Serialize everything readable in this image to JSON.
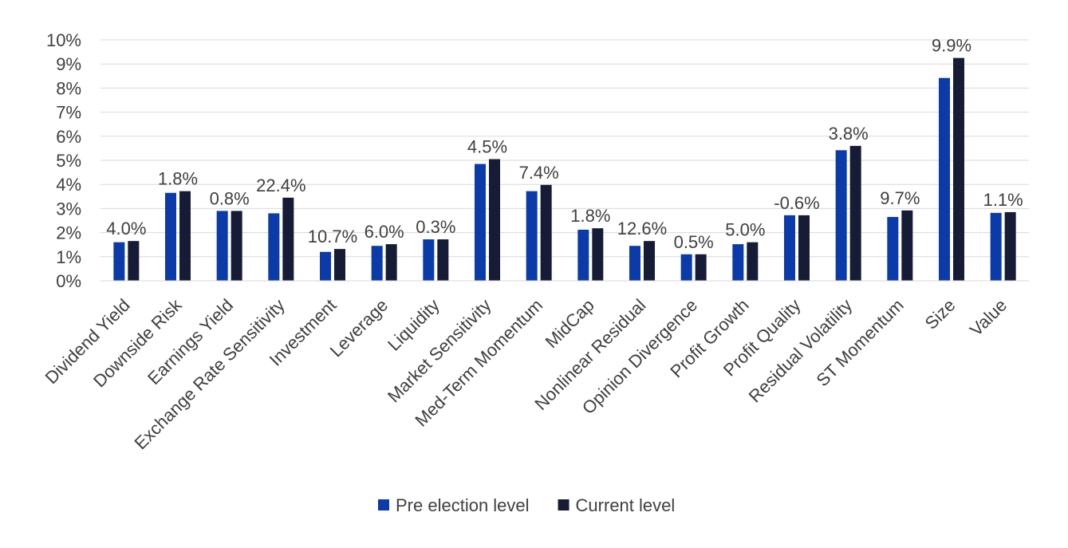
{
  "chart_data": {
    "type": "bar",
    "title": "",
    "xlabel": "",
    "ylabel": "",
    "ylim": [
      0,
      10
    ],
    "y_ticks": [
      "0%",
      "1%",
      "2%",
      "3%",
      "4%",
      "5%",
      "6%",
      "7%",
      "8%",
      "9%",
      "10%"
    ],
    "grid": true,
    "legend_position": "bottom",
    "categories": [
      "Dividend Yield",
      "Downside Risk",
      "Earnings Yield",
      "Exchange Rate Sensitivity",
      "Investment",
      "Leverage",
      "Liquidity",
      "Market Sensitivity",
      "Med-Term Momentum",
      "MidCap",
      "Nonlinear Residual",
      "Opinion Divergence",
      "Profit Growth",
      "Profit Quality",
      "Residual Volatility",
      "ST Momentum",
      "Size",
      "Value"
    ],
    "series": [
      {
        "name": "Pre election level",
        "color": "#0b3ba8",
        "values": [
          1.6,
          3.65,
          2.9,
          2.8,
          1.2,
          1.45,
          1.72,
          4.85,
          3.72,
          2.12,
          1.45,
          1.1,
          1.52,
          2.72,
          5.42,
          2.65,
          8.42,
          2.82
        ]
      },
      {
        "name": "Current level",
        "color": "#161c36",
        "values": [
          1.65,
          3.72,
          2.9,
          3.45,
          1.32,
          1.52,
          1.72,
          5.05,
          3.98,
          2.18,
          1.65,
          1.1,
          1.6,
          2.72,
          5.6,
          2.92,
          9.25,
          2.85
        ]
      }
    ],
    "data_labels": [
      "4.0%",
      "1.8%",
      "0.8%",
      "22.4%",
      "10.7%",
      "6.0%",
      "0.3%",
      "4.5%",
      "7.4%",
      "1.8%",
      "12.6%",
      "0.5%",
      "5.0%",
      "-0.6%",
      "3.8%",
      "9.7%",
      "9.9%",
      "1.1%"
    ]
  }
}
